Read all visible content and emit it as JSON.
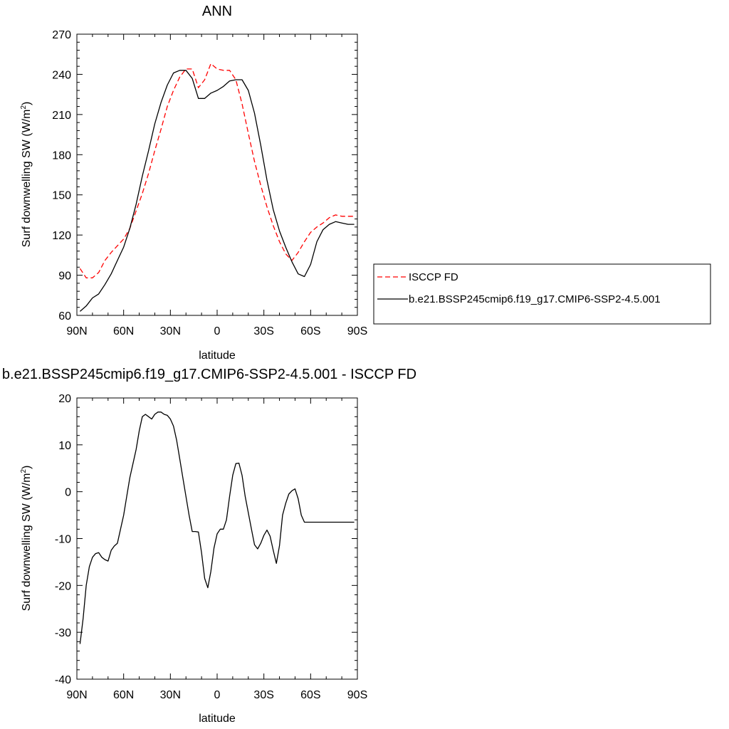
{
  "chart_data": [
    {
      "type": "line",
      "title": "ANN",
      "xlabel": "latitude",
      "ylabel": "Surf downwelling SW (W/m",
      "ylabel_sup": "2",
      "ylabel_tail": ")",
      "xlim": [
        90,
        -90
      ],
      "ylim": [
        60,
        270
      ],
      "xticks": [
        {
          "value": 90,
          "label": "90N"
        },
        {
          "value": 60,
          "label": "60N"
        },
        {
          "value": 30,
          "label": "30N"
        },
        {
          "value": 0,
          "label": "0"
        },
        {
          "value": -30,
          "label": "30S"
        },
        {
          "value": -60,
          "label": "60S"
        },
        {
          "value": -90,
          "label": "90S"
        }
      ],
      "yticks": [
        60,
        90,
        120,
        150,
        180,
        210,
        240,
        270
      ],
      "legend": {
        "placement": "right"
      },
      "series": [
        {
          "name": "ISCCP FD",
          "color": "#ff0000",
          "style": "dashed",
          "x": [
            88,
            84,
            80,
            76,
            72,
            68,
            64,
            60,
            56,
            52,
            48,
            44,
            40,
            36,
            32,
            28,
            24,
            20,
            16,
            12,
            8,
            4,
            0,
            -4,
            -8,
            -12,
            -16,
            -20,
            -24,
            -28,
            -32,
            -36,
            -40,
            -44,
            -48,
            -52,
            -56,
            -60,
            -64,
            -68,
            -72,
            -76,
            -80,
            -84,
            -88
          ],
          "y": [
            95,
            88,
            88,
            92,
            101,
            107,
            112,
            117,
            125,
            138,
            151,
            166,
            183,
            199,
            216,
            228,
            238,
            244,
            244,
            230,
            236,
            248,
            244,
            243,
            243,
            236,
            218,
            196,
            175,
            157,
            141,
            127,
            115,
            106,
            101,
            107,
            115,
            122,
            126,
            129,
            133,
            135,
            134,
            134,
            134
          ]
        },
        {
          "name": "b.e21.BSSP245cmip6.f19_g17.CMIP6-SSP2-4.5.001",
          "color": "#000000",
          "style": "solid",
          "x": [
            88,
            84,
            80,
            76,
            72,
            68,
            64,
            60,
            56,
            52,
            48,
            44,
            40,
            36,
            32,
            28,
            24,
            20,
            16,
            12,
            8,
            4,
            0,
            -4,
            -8,
            -12,
            -16,
            -20,
            -24,
            -28,
            -32,
            -36,
            -40,
            -44,
            -48,
            -52,
            -56,
            -60,
            -64,
            -68,
            -72,
            -76,
            -80,
            -84,
            -88
          ],
          "y": [
            63,
            67,
            73,
            76,
            83,
            91,
            101,
            111,
            125,
            143,
            164,
            183,
            203,
            219,
            232,
            241,
            243,
            243,
            237,
            222,
            222,
            226,
            228,
            231,
            235,
            236,
            236,
            228,
            211,
            187,
            161,
            139,
            123,
            111,
            100,
            91,
            89,
            98,
            115,
            124,
            128,
            130,
            129,
            128,
            128
          ]
        }
      ]
    },
    {
      "type": "line",
      "title": "b.e21.BSSP245cmip6.f19_g17.CMIP6-SSP2-4.5.001 - ISCCP FD",
      "xlabel": "latitude",
      "ylabel": "Surf downwelling SW (W/m",
      "ylabel_sup": "2",
      "ylabel_tail": ")",
      "xlim": [
        90,
        -90
      ],
      "ylim": [
        -40,
        20
      ],
      "xticks": [
        {
          "value": 90,
          "label": "90N"
        },
        {
          "value": 60,
          "label": "60N"
        },
        {
          "value": 30,
          "label": "30N"
        },
        {
          "value": 0,
          "label": "0"
        },
        {
          "value": -30,
          "label": "30S"
        },
        {
          "value": -60,
          "label": "60S"
        },
        {
          "value": -90,
          "label": "90S"
        }
      ],
      "yticks": [
        -40,
        -30,
        -20,
        -10,
        0,
        10,
        20
      ],
      "series": [
        {
          "color": "#000000",
          "style": "solid",
          "x": [
            88,
            86,
            84,
            82,
            80,
            78,
            76,
            74,
            72,
            70,
            68,
            66,
            64,
            62,
            60,
            58,
            56,
            54,
            52,
            50,
            48,
            46,
            44,
            42,
            40,
            38,
            36,
            34,
            32,
            30,
            28,
            26,
            24,
            22,
            20,
            18,
            16,
            14,
            12,
            10,
            8,
            6,
            4,
            2,
            0,
            -2,
            -4,
            -6,
            -8,
            -10,
            -12,
            -14,
            -16,
            -18,
            -20,
            -22,
            -24,
            -26,
            -28,
            -30,
            -32,
            -34,
            -36,
            -38,
            -40,
            -42,
            -44,
            -46,
            -48,
            -50,
            -52,
            -54,
            -56,
            -58,
            -60,
            -62,
            -64,
            -66,
            -68,
            -70,
            -72,
            -74,
            -76,
            -78,
            -80,
            -82,
            -84,
            -86,
            -88
          ],
          "y": [
            -32.5,
            -27,
            -20,
            -16,
            -14,
            -13.2,
            -13,
            -14,
            -14.5,
            -14.8,
            -12.5,
            -11.6,
            -11,
            -8,
            -5,
            -1,
            3,
            6,
            9,
            13,
            16,
            16.5,
            16,
            15.5,
            16.5,
            17,
            17,
            16.5,
            16.3,
            15.5,
            14,
            11,
            7,
            3,
            -1,
            -5,
            -8.5,
            -8.5,
            -8.6,
            -13,
            -18.5,
            -20.5,
            -17,
            -12,
            -9,
            -8,
            -8,
            -6,
            -1,
            3.5,
            6,
            6.1,
            3.5,
            -1,
            -4.5,
            -8,
            -11.3,
            -12.2,
            -11,
            -9.3,
            -8.2,
            -9.5,
            -12.5,
            -15.3,
            -11.5,
            -5,
            -2.5,
            -0.5,
            0.2,
            0.6,
            -1.5,
            -5,
            -6.5,
            -6.5,
            -6.5,
            -6.5,
            -6.5,
            -6.5,
            -6.5,
            -6.5,
            -6.5,
            -6.5,
            -6.5,
            -6.5,
            -6.5,
            -6.5,
            -6.5,
            -6.5,
            -6.5
          ]
        }
      ]
    }
  ]
}
